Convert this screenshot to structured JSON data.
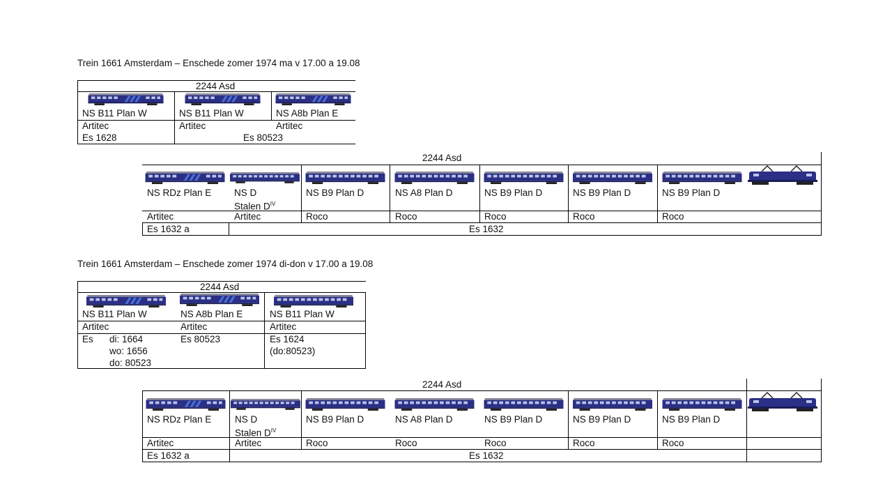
{
  "colors": {
    "coach_blue": "#2b2f86",
    "coach_light_blue": "#4a6fd8",
    "roof_grey": "#8a8a9a",
    "window": "#b9c4e8"
  },
  "section1": {
    "title": "Trein 1661 Amsterdam – Enschede zomer 1974 ma v 17.00  a 19.08",
    "top": {
      "header": "2244 Asd",
      "cars": [
        {
          "type": "NS B11 Plan W",
          "maker": "Artitec"
        },
        {
          "type": "NS B11 Plan W",
          "maker": "Artitec"
        },
        {
          "type": "NS A8b Plan E",
          "maker": "Artitec"
        }
      ],
      "dest1": "Es 1628",
      "dest2": "Es 80523"
    },
    "main": {
      "header": "2244 Asd",
      "cars": [
        {
          "type": "NS RDz Plan E",
          "maker": "Artitec"
        },
        {
          "type": "NS D",
          "type2": "Stalen D",
          "sup": "IV",
          "maker": "Artitec"
        },
        {
          "type": "NS B9 Plan D",
          "maker": "Roco"
        },
        {
          "type": "NS A8 Plan D",
          "maker": "Roco"
        },
        {
          "type": "NS B9 Plan D",
          "maker": "Roco"
        },
        {
          "type": "NS B9 Plan D",
          "maker": "Roco"
        },
        {
          "type": "NS B9 Plan D",
          "maker": "Roco"
        }
      ],
      "dest1": "Es 1632 a",
      "dest2": "Es 1632"
    }
  },
  "section2": {
    "title": "Trein 1661 Amsterdam – Enschede zomer 1974 di-don v 17.00  a 19.08",
    "top": {
      "header": "2244 Asd",
      "cars": [
        {
          "type": "NS B11 Plan W",
          "maker": "Artitec"
        },
        {
          "type": "NS A8b Plan E",
          "maker": "Artitec"
        },
        {
          "type": "NS B11 Plan W",
          "maker": "Artitec"
        }
      ],
      "dest_es": "Es",
      "dest_days": [
        "di: 1664",
        "wo: 1656",
        "do: 80523"
      ],
      "dest2": "Es 80523",
      "dest3": "Es 1624",
      "dest3b": "(do:80523)"
    },
    "main": {
      "header": "2244 Asd",
      "cars": [
        {
          "type": "NS RDz Plan E",
          "maker": "Artitec"
        },
        {
          "type": "NS D",
          "type2": "Stalen D",
          "sup": "IV",
          "maker": "Artitec"
        },
        {
          "type": "NS B9 Plan D",
          "maker": "Roco"
        },
        {
          "type": "NS A8 Plan D",
          "maker": "Roco"
        },
        {
          "type": "NS B9 Plan D",
          "maker": "Roco"
        },
        {
          "type": "NS B9 Plan D",
          "maker": "Roco"
        },
        {
          "type": "NS B9 Plan D",
          "maker": "Roco"
        }
      ],
      "dest1": "Es 1632 a",
      "dest2": "Es 1632"
    }
  }
}
